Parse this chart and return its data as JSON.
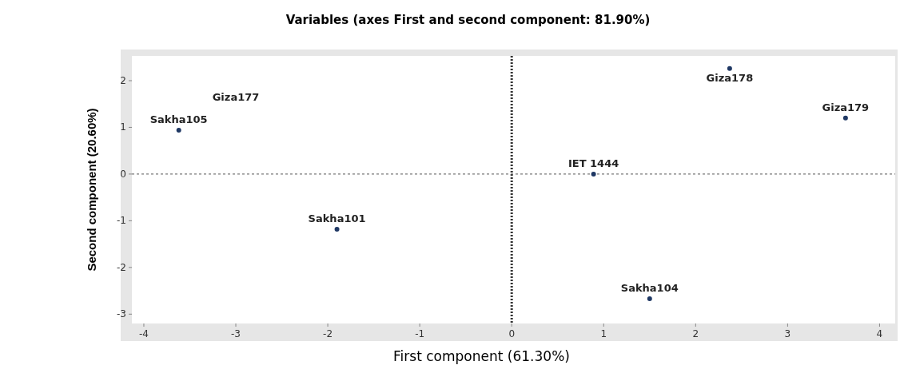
{
  "chart_data": {
    "type": "scatter",
    "title": "Variables (axes First and second component: 81.90%)",
    "xlabel": "First component  (61.30%)",
    "ylabel": "Second component (20.60%)",
    "x": [
      -3.62,
      -1.9,
      0.89,
      2.37,
      3.63,
      1.5
    ],
    "series": [
      {
        "color": "#1f3864",
        "values": [
          0.94,
          -1.18,
          0,
          2.26,
          1.2,
          -2.67
        ],
        "value_labels": [
          "Sakha105",
          "Sakha101",
          "IET 1444",
          "Giza178",
          "Giza179",
          "Sakha104"
        ]
      }
    ],
    "annotations": [
      "Giza177"
    ],
    "xlim": [
      -4.13,
      4.17
    ],
    "xticks": [
      -4,
      -3,
      -2,
      -1,
      0,
      1,
      2,
      3,
      4
    ],
    "ylim": [
      -3.2,
      2.53
    ],
    "yticks": [
      -3,
      -2,
      -1,
      0,
      1,
      2
    ],
    "ref_lines": [
      {
        "axis": "x",
        "value": 0,
        "line_style": "dotted"
      },
      {
        "axis": "y",
        "value": 0,
        "line_style": "dashed"
      }
    ],
    "marker": "circle",
    "grid": false
  }
}
